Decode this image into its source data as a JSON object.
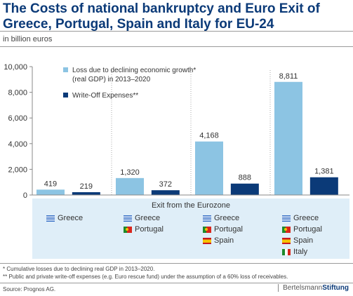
{
  "title": "The Costs of national bankruptcy and Euro Exit of Greece, Portugal, Spain and Italy for EU-24",
  "subtitle": "in billion euros",
  "colors": {
    "light": "#8cc4e3",
    "dark": "#0b3a78",
    "title": "#0b3a78",
    "panel": "#dfeef8",
    "grid": "#d0d0d0"
  },
  "chart_data": {
    "type": "bar",
    "categories": [
      "",
      "",
      "",
      ""
    ],
    "series": [
      {
        "name": "Loss due to declining economic growth*",
        "name_line2": "(real GDP) in 2013–2020",
        "values": [
          419,
          1320,
          4168,
          8811
        ],
        "labels": [
          "419",
          "1,320",
          "4,168",
          "8,811"
        ]
      },
      {
        "name": "Write-Off Expenses**",
        "values": [
          219,
          372,
          888,
          1381
        ],
        "labels": [
          "219",
          "372",
          "888",
          "1,381"
        ]
      }
    ],
    "ylim": [
      0,
      10000
    ],
    "yticks": [
      0,
      2000,
      4000,
      6000,
      8000,
      10000
    ],
    "ytick_labels": [
      "0",
      "2,000",
      "4,000",
      "6,000",
      "8,000",
      "10,000"
    ],
    "xlabel": "Exit from the Eurozone",
    "grid": false,
    "legend_position": "top-left"
  },
  "exit_groups": [
    {
      "countries": [
        {
          "name": "Greece",
          "flag": "greece-flag-icon"
        }
      ]
    },
    {
      "countries": [
        {
          "name": "Greece",
          "flag": "greece-flag-icon"
        },
        {
          "name": "Portugal",
          "flag": "portugal-flag-icon"
        }
      ]
    },
    {
      "countries": [
        {
          "name": "Greece",
          "flag": "greece-flag-icon"
        },
        {
          "name": "Portugal",
          "flag": "portugal-flag-icon"
        },
        {
          "name": "Spain",
          "flag": "spain-flag-icon"
        }
      ]
    },
    {
      "countries": [
        {
          "name": "Greece",
          "flag": "greece-flag-icon"
        },
        {
          "name": "Portugal",
          "flag": "portugal-flag-icon"
        },
        {
          "name": "Spain",
          "flag": "spain-flag-icon"
        },
        {
          "name": "Italy",
          "flag": "italy-flag-icon"
        }
      ]
    }
  ],
  "footnotes": [
    "* Cumulative losses due to declining real GDP in 2013–2020.",
    "** Public and private write-off expenses (e.g. Euro rescue fund) under the assumption of a 60% loss of receivables."
  ],
  "source": "Source: Prognos AG.",
  "brand": {
    "part1": "Bertelsmann",
    "part2": "Stiftung"
  }
}
